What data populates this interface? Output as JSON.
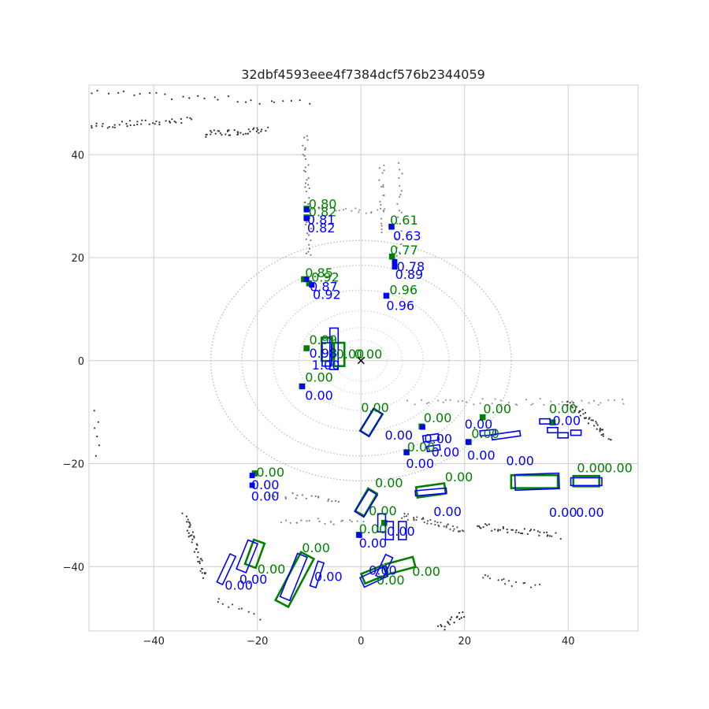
{
  "chart_data": {
    "type": "scatter",
    "title": "32dbf4593eee4f7384dcf576b2344059",
    "xlim": [
      -52.5,
      53.5
    ],
    "ylim": [
      -52.5,
      53.5
    ],
    "xticks": [
      -40,
      -20,
      0,
      20,
      40
    ],
    "yticks": [
      -40,
      -20,
      0,
      20,
      40
    ],
    "grid": true,
    "colors": {
      "ground_truth": "#008000",
      "prediction": "#0000ff",
      "points": "#555555",
      "ego_marker": "#000000"
    },
    "ego_marker": {
      "x": 0,
      "y": 0,
      "symbol": "x"
    },
    "ground_truth_boxes": [
      {
        "x": -10.5,
        "y": 29.5,
        "w": 0.7,
        "l": 0.7,
        "yaw": 0,
        "score": "0.80"
      },
      {
        "x": -10.5,
        "y": 27.8,
        "w": 0.7,
        "l": 0.7,
        "yaw": 0,
        "score": "0.82"
      },
      {
        "x": 5.9,
        "y": 26.0,
        "w": 0.7,
        "l": 0.7,
        "yaw": 0,
        "score": "0.61"
      },
      {
        "x": 6.0,
        "y": 20.2,
        "w": 0.7,
        "l": 0.7,
        "yaw": 0,
        "score": "0.77"
      },
      {
        "x": -11.0,
        "y": 15.8,
        "w": 0.7,
        "l": 0.7,
        "yaw": 0,
        "score": "0.85"
      },
      {
        "x": -10.0,
        "y": 15.0,
        "w": 0.7,
        "l": 0.7,
        "yaw": 0,
        "score": "0.92"
      },
      {
        "x": 4.9,
        "y": 12.6,
        "w": 0.7,
        "l": 0.7,
        "yaw": 0,
        "score": "0.96"
      },
      {
        "x": -6.6,
        "y": 2.2,
        "w": 2.0,
        "l": 4.5,
        "yaw": 90,
        "score": "0.99"
      },
      {
        "x": -4.2,
        "y": 1.2,
        "w": 2.0,
        "l": 4.5,
        "yaw": 90,
        "score": "0.00"
      },
      {
        "x": -10.5,
        "y": 2.4,
        "w": 0.7,
        "l": 0.7,
        "yaw": 0,
        "score": "0.00"
      },
      {
        "x": -11.4,
        "y": -5.0,
        "w": 0.7,
        "l": 0.7,
        "yaw": 0,
        "score": "0.00"
      },
      {
        "x": 2.0,
        "y": -12.0,
        "w": 2.0,
        "l": 5.0,
        "yaw": 58,
        "score": "0.00"
      },
      {
        "x": 11.7,
        "y": -12.8,
        "w": 0.7,
        "l": 0.7,
        "yaw": 0,
        "score": "0.00"
      },
      {
        "x": 23.5,
        "y": -11.0,
        "w": 0.7,
        "l": 0.7,
        "yaw": 0,
        "score": "0.00"
      },
      {
        "x": 20.8,
        "y": -15.8,
        "w": 0.7,
        "l": 0.7,
        "yaw": 0,
        "score": "0.00"
      },
      {
        "x": 8.8,
        "y": -17.8,
        "w": 0.7,
        "l": 0.7,
        "yaw": 0,
        "score": "0.00"
      },
      {
        "x": 33.5,
        "y": -23.5,
        "w": 2.5,
        "l": 9.0,
        "yaw": 0,
        "score": "0.00"
      },
      {
        "x": 43.5,
        "y": -23.4,
        "w": 2.0,
        "l": 5.0,
        "yaw": 0,
        "score": "0.00"
      },
      {
        "x": 37.0,
        "y": -12.0,
        "w": 0.7,
        "l": 0.7,
        "yaw": 0,
        "score": "0.00"
      },
      {
        "x": -20.5,
        "y": -21.9,
        "w": 0.7,
        "l": 0.7,
        "yaw": 0,
        "score": "0.00"
      },
      {
        "x": 13.5,
        "y": -25.2,
        "w": 2.0,
        "l": 5.5,
        "yaw": 8,
        "score": "0.00"
      },
      {
        "x": 1.0,
        "y": -27.5,
        "w": 2.0,
        "l": 5.0,
        "yaw": 60,
        "score": "0.00"
      },
      {
        "x": 4.5,
        "y": -31.5,
        "w": 0.7,
        "l": 0.7,
        "yaw": 0,
        "score": "0.00"
      },
      {
        "x": -0.4,
        "y": -33.8,
        "w": 0.7,
        "l": 0.7,
        "yaw": 0,
        "score": "0.00"
      },
      {
        "x": -20.5,
        "y": -37.5,
        "w": 2.2,
        "l": 5.0,
        "yaw": 70,
        "score": "0.00"
      },
      {
        "x": -12.8,
        "y": -42.5,
        "w": 2.8,
        "l": 10.5,
        "yaw": 62,
        "score": "0.00"
      },
      {
        "x": 2.5,
        "y": -41.5,
        "w": 2.0,
        "l": 4.5,
        "yaw": 22,
        "score": "0.00"
      },
      {
        "x": 7.6,
        "y": -39.8,
        "w": 2.0,
        "l": 5.5,
        "yaw": 15,
        "score": "0.00"
      }
    ],
    "prediction_boxes": [
      {
        "x": -10.5,
        "y": 29.3,
        "w": 0.8,
        "l": 0.8,
        "yaw": 0,
        "score": "0.81"
      },
      {
        "x": -10.5,
        "y": 27.6,
        "w": 0.8,
        "l": 0.8,
        "yaw": 0,
        "score": "0.82"
      },
      {
        "x": 5.9,
        "y": 26.0,
        "w": 0.8,
        "l": 0.8,
        "yaw": 0,
        "score": "0.63"
      },
      {
        "x": 6.5,
        "y": 19.2,
        "w": 0.8,
        "l": 0.8,
        "yaw": 0,
        "score": "0.78"
      },
      {
        "x": 6.5,
        "y": 18.2,
        "w": 0.8,
        "l": 0.8,
        "yaw": 0,
        "score": "0.89"
      },
      {
        "x": -10.5,
        "y": 15.8,
        "w": 0.8,
        "l": 0.8,
        "yaw": 0,
        "score": "0.87"
      },
      {
        "x": -9.5,
        "y": 14.7,
        "w": 0.8,
        "l": 0.8,
        "yaw": 0,
        "score": "0.92"
      },
      {
        "x": 4.9,
        "y": 12.6,
        "w": 0.8,
        "l": 0.8,
        "yaw": 0,
        "score": "0.96"
      },
      {
        "x": -5.2,
        "y": 2.3,
        "w": 1.6,
        "l": 8.0,
        "yaw": 90,
        "score": "0.98"
      },
      {
        "x": -6.6,
        "y": 1.2,
        "w": 1.8,
        "l": 4.5,
        "yaw": 90,
        "score": "1.00"
      },
      {
        "x": -11.3,
        "y": -5.0,
        "w": 0.8,
        "l": 0.8,
        "yaw": 0,
        "score": "0.00"
      },
      {
        "x": 2.0,
        "y": -12.0,
        "w": 2.0,
        "l": 5.0,
        "yaw": 60,
        "score": "0.00"
      },
      {
        "x": 11.9,
        "y": -12.9,
        "w": 0.8,
        "l": 0.8,
        "yaw": 0,
        "score": "0.00"
      },
      {
        "x": 13.5,
        "y": -15.0,
        "w": 1.2,
        "l": 3.0,
        "yaw": 8,
        "score": "0.00"
      },
      {
        "x": 14.0,
        "y": -17.0,
        "w": 1.0,
        "l": 2.5,
        "yaw": 8,
        "score": "0.00"
      },
      {
        "x": 20.7,
        "y": -15.8,
        "w": 0.8,
        "l": 0.8,
        "yaw": 0,
        "score": "0.00"
      },
      {
        "x": 8.8,
        "y": -17.8,
        "w": 0.8,
        "l": 0.8,
        "yaw": 0,
        "score": "0.00"
      },
      {
        "x": 24.5,
        "y": -14.0,
        "w": 1.0,
        "l": 3.0,
        "yaw": 5,
        "score": "0.00"
      },
      {
        "x": 28.0,
        "y": -14.5,
        "w": 1.0,
        "l": 5.5,
        "yaw": 8,
        "score": "0.00"
      },
      {
        "x": 34.0,
        "y": -23.5,
        "w": 3.0,
        "l": 8.5,
        "yaw": 2,
        "score": "0.00"
      },
      {
        "x": 43.5,
        "y": -23.5,
        "w": 1.5,
        "l": 6.0,
        "yaw": 0,
        "score": "0.00"
      },
      {
        "x": 35.5,
        "y": -11.8,
        "w": 1.0,
        "l": 2.0,
        "yaw": 0,
        "score": "0.00"
      },
      {
        "x": 37.0,
        "y": -13.5,
        "w": 1.0,
        "l": 2.0,
        "yaw": 0,
        "score": "0.00"
      },
      {
        "x": 39.0,
        "y": -14.5,
        "w": 1.0,
        "l": 2.0,
        "yaw": 0,
        "score": "0.00"
      },
      {
        "x": 41.5,
        "y": -14.0,
        "w": 1.0,
        "l": 2.0,
        "yaw": 0,
        "score": "0.00"
      },
      {
        "x": -21.0,
        "y": -22.3,
        "w": 0.8,
        "l": 0.8,
        "yaw": 0,
        "score": "0.00"
      },
      {
        "x": -21.0,
        "y": -24.2,
        "w": 0.8,
        "l": 0.8,
        "yaw": 0,
        "score": "0.00"
      },
      {
        "x": 13.5,
        "y": -25.5,
        "w": 1.0,
        "l": 6.0,
        "yaw": 5,
        "score": "0.00"
      },
      {
        "x": 1.0,
        "y": -27.7,
        "w": 2.0,
        "l": 5.0,
        "yaw": 58,
        "score": "0.00"
      },
      {
        "x": 4.0,
        "y": -31.5,
        "w": 1.5,
        "l": 3.5,
        "yaw": 90,
        "score": "0.00"
      },
      {
        "x": 5.5,
        "y": -33.0,
        "w": 1.5,
        "l": 3.5,
        "yaw": 90,
        "score": "0.00"
      },
      {
        "x": 8.0,
        "y": -33.0,
        "w": 1.5,
        "l": 3.5,
        "yaw": 90,
        "score": "0.00"
      },
      {
        "x": -0.3,
        "y": -33.9,
        "w": 0.8,
        "l": 0.8,
        "yaw": 0,
        "score": "0.00"
      },
      {
        "x": -22.0,
        "y": -38.0,
        "w": 2.0,
        "l": 6.0,
        "yaw": 68,
        "score": "0.00"
      },
      {
        "x": -26.0,
        "y": -40.5,
        "w": 1.2,
        "l": 6.0,
        "yaw": 65,
        "score": "0.00"
      },
      {
        "x": -13.0,
        "y": -42.0,
        "w": 2.0,
        "l": 9.0,
        "yaw": 68,
        "score": "0.00"
      },
      {
        "x": -8.5,
        "y": -41.5,
        "w": 1.2,
        "l": 5.0,
        "yaw": 72,
        "score": "0.00"
      },
      {
        "x": 2.5,
        "y": -42.0,
        "w": 2.0,
        "l": 5.0,
        "yaw": 25,
        "score": "0.00"
      },
      {
        "x": 4.5,
        "y": -40.0,
        "w": 1.5,
        "l": 4.5,
        "yaw": 65,
        "score": "0.00"
      }
    ],
    "score_labels": [
      {
        "x": -10.1,
        "y": 29.6,
        "color": "green",
        "text": "0.80"
      },
      {
        "x": -10.1,
        "y": 28.0,
        "color": "green",
        "text": "0.82"
      },
      {
        "x": -10.4,
        "y": 26.5,
        "color": "blue",
        "text": "0.81"
      },
      {
        "x": -10.4,
        "y": 24.9,
        "color": "blue",
        "text": "0.82"
      },
      {
        "x": 5.6,
        "y": 26.4,
        "color": "green",
        "text": "0.61"
      },
      {
        "x": 6.2,
        "y": 23.4,
        "color": "blue",
        "text": "0.63"
      },
      {
        "x": 5.6,
        "y": 20.6,
        "color": "green",
        "text": "0.77"
      },
      {
        "x": 6.9,
        "y": 17.4,
        "color": "blue",
        "text": "0.78"
      },
      {
        "x": 6.6,
        "y": 15.9,
        "color": "blue",
        "text": "0.89"
      },
      {
        "x": -10.8,
        "y": 16.2,
        "color": "green",
        "text": "0.85"
      },
      {
        "x": -9.6,
        "y": 15.3,
        "color": "green",
        "text": "0.92"
      },
      {
        "x": -9.9,
        "y": 13.5,
        "color": "blue",
        "text": "0.87"
      },
      {
        "x": -9.3,
        "y": 12.0,
        "color": "blue",
        "text": "0.92"
      },
      {
        "x": 5.5,
        "y": 12.9,
        "color": "green",
        "text": "0.96"
      },
      {
        "x": 4.9,
        "y": 9.8,
        "color": "blue",
        "text": "0.96"
      },
      {
        "x": -10.0,
        "y": 3.2,
        "color": "green",
        "text": "0.99"
      },
      {
        "x": -10.0,
        "y": 0.6,
        "color": "blue",
        "text": "0.98"
      },
      {
        "x": -9.5,
        "y": -1.7,
        "color": "blue",
        "text": "1.00"
      },
      {
        "x": -4.8,
        "y": 0.4,
        "color": "green",
        "text": "0.00"
      },
      {
        "x": -1.3,
        "y": 0.4,
        "color": "green",
        "text": "0.00"
      },
      {
        "x": -10.8,
        "y": -4.1,
        "color": "green",
        "text": "0.00"
      },
      {
        "x": -10.8,
        "y": -7.6,
        "color": "blue",
        "text": "0.00"
      },
      {
        "x": 0.0,
        "y": -10.0,
        "color": "green",
        "text": "0.00"
      },
      {
        "x": 4.6,
        "y": -15.3,
        "color": "blue",
        "text": "0.00"
      },
      {
        "x": 12.1,
        "y": -12.0,
        "color": "green",
        "text": "0.00"
      },
      {
        "x": 12.2,
        "y": -16.0,
        "color": "blue",
        "text": "0.00"
      },
      {
        "x": 13.6,
        "y": -18.6,
        "color": "blue",
        "text": "0.00"
      },
      {
        "x": 23.6,
        "y": -10.2,
        "color": "green",
        "text": "0.00"
      },
      {
        "x": 20.0,
        "y": -13.2,
        "color": "blue",
        "text": "0.00"
      },
      {
        "x": 21.3,
        "y": -15.0,
        "color": "green",
        "text": "0.00"
      },
      {
        "x": 8.9,
        "y": -17.6,
        "color": "green",
        "text": "0.00"
      },
      {
        "x": 8.7,
        "y": -20.8,
        "color": "blue",
        "text": "0.00"
      },
      {
        "x": 20.5,
        "y": -19.2,
        "color": "blue",
        "text": "0.00"
      },
      {
        "x": 28.0,
        "y": -20.3,
        "color": "blue",
        "text": "0.00"
      },
      {
        "x": 36.3,
        "y": -10.2,
        "color": "green",
        "text": "0.00"
      },
      {
        "x": 37.0,
        "y": -12.5,
        "color": "blue",
        "text": "0.00"
      },
      {
        "x": 41.7,
        "y": -21.7,
        "color": "green",
        "text": "0.00"
      },
      {
        "x": 47.0,
        "y": -21.7,
        "color": "green",
        "text": "0.00"
      },
      {
        "x": 41.5,
        "y": -30.3,
        "color": "blue",
        "text": "0.00"
      },
      {
        "x": -20.2,
        "y": -22.5,
        "color": "green",
        "text": "0.00"
      },
      {
        "x": -21.2,
        "y": -25.0,
        "color": "blue",
        "text": "0.00"
      },
      {
        "x": -21.2,
        "y": -27.2,
        "color": "blue",
        "text": "0.00"
      },
      {
        "x": 16.2,
        "y": -23.4,
        "color": "green",
        "text": "0.00"
      },
      {
        "x": 14.0,
        "y": -30.2,
        "color": "blue",
        "text": "0.00"
      },
      {
        "x": 2.7,
        "y": -24.6,
        "color": "green",
        "text": "0.00"
      },
      {
        "x": 1.5,
        "y": -30.0,
        "color": "green",
        "text": "0.00"
      },
      {
        "x": 5.0,
        "y": -34.0,
        "color": "blue",
        "text": "0.00"
      },
      {
        "x": -0.4,
        "y": -33.5,
        "color": "green",
        "text": "0.00"
      },
      {
        "x": -0.4,
        "y": -36.3,
        "color": "blue",
        "text": "0.00"
      },
      {
        "x": 36.3,
        "y": -30.3,
        "color": "blue",
        "text": "0.00"
      },
      {
        "x": -20.0,
        "y": -41.3,
        "color": "green",
        "text": "0.00"
      },
      {
        "x": -23.5,
        "y": -43.3,
        "color": "blue",
        "text": "0.00"
      },
      {
        "x": -26.3,
        "y": -44.5,
        "color": "blue",
        "text": "0.00"
      },
      {
        "x": -11.4,
        "y": -37.2,
        "color": "green",
        "text": "0.00"
      },
      {
        "x": -9.0,
        "y": -42.8,
        "color": "blue",
        "text": "0.00"
      },
      {
        "x": 1.5,
        "y": -41.6,
        "color": "blue",
        "text": "0.00"
      },
      {
        "x": 9.9,
        "y": -41.8,
        "color": "green",
        "text": "0.00"
      },
      {
        "x": 3.0,
        "y": -43.5,
        "color": "green",
        "text": "0.00"
      }
    ],
    "point_clusters": [
      {
        "x1": -52,
        "y1": 45.5,
        "x2": -33,
        "y2": 46.7,
        "n": 40,
        "shade": "#333333"
      },
      {
        "x1": -30,
        "y1": 44.0,
        "x2": -18,
        "y2": 44.8,
        "n": 40,
        "shade": "#333333"
      },
      {
        "x1": -52,
        "y1": 52,
        "x2": -10,
        "y2": 50,
        "n": 28,
        "shade": "#333333"
      },
      {
        "x1": -10.8,
        "y1": 44,
        "x2": -10.0,
        "y2": 20,
        "n": 40,
        "shade": "#777777"
      },
      {
        "x1": -10,
        "y1": 30,
        "x2": 4,
        "y2": 29,
        "n": 20,
        "shade": "#999999"
      },
      {
        "x1": 4,
        "y1": 38,
        "x2": 4.5,
        "y2": 25,
        "n": 20,
        "shade": "#888888"
      },
      {
        "x1": 7.5,
        "y1": 38,
        "x2": 7.5,
        "y2": 20,
        "n": 20,
        "shade": "#888888"
      },
      {
        "x1": 9,
        "y1": -8,
        "x2": 51,
        "y2": -8,
        "n": 40,
        "shade": "#999999"
      },
      {
        "x1": -18,
        "y1": -26,
        "x2": -4,
        "y2": -27,
        "n": 20,
        "shade": "#777777"
      },
      {
        "x1": -15,
        "y1": -31,
        "x2": 0,
        "y2": -31.5,
        "n": 20,
        "shade": "#888888"
      },
      {
        "x1": 15,
        "y1": -52,
        "x2": 20,
        "y2": -49,
        "n": 18,
        "shade": "#222222"
      },
      {
        "x1": -30,
        "y1": -42,
        "x2": -34,
        "y2": -30,
        "n": 40,
        "shade": "#333333"
      },
      {
        "x1": 22,
        "y1": -32,
        "x2": 38,
        "y2": -34,
        "n": 40,
        "shade": "#333333"
      },
      {
        "x1": 40,
        "y1": -8,
        "x2": 48,
        "y2": -15,
        "n": 40,
        "shade": "#333333"
      },
      {
        "x1": 23,
        "y1": -42,
        "x2": 34,
        "y2": -44,
        "n": 16,
        "shade": "#444444"
      },
      {
        "x1": -51,
        "y1": -10,
        "x2": -51,
        "y2": -18,
        "n": 6,
        "shade": "#333333"
      },
      {
        "x1": 8,
        "y1": -30,
        "x2": 20,
        "y2": -33,
        "n": 40,
        "shade": "#555555"
      },
      {
        "x1": -28,
        "y1": -46,
        "x2": -20,
        "y2": -50,
        "n": 10,
        "shade": "#444444"
      }
    ],
    "curves": [
      {
        "cx": 0,
        "cy": 0,
        "r": 5,
        "shade": "#dddddd"
      },
      {
        "cx": 0,
        "cy": 0,
        "r": 8,
        "shade": "#dcdcdc"
      },
      {
        "cx": 0,
        "cy": 0,
        "r": 12,
        "shade": "#d5d5d5"
      },
      {
        "cx": 0,
        "cy": 0,
        "r": 17,
        "shade": "#cccccc"
      },
      {
        "cx": 0,
        "cy": 0,
        "r": 23,
        "shade": "#c4c4c4"
      },
      {
        "cx": 0,
        "cy": 0,
        "r": 29,
        "shade": "#bbbbbb"
      }
    ]
  }
}
